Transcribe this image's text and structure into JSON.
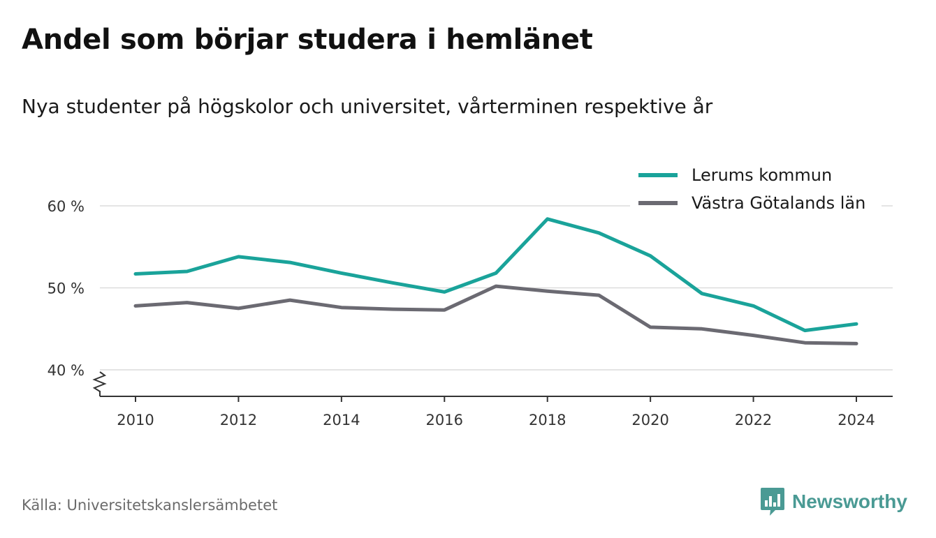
{
  "title": "Andel som börjar studera i hemlänet",
  "subtitle": "Nya studenter på högskolor och universitet, vårterminen respektive år",
  "source": "Källa: Universitetskanslersämbetet",
  "brand": {
    "name": "Newsworthy",
    "icon": "newsworthy-logo-icon",
    "color": "#4a9a94"
  },
  "chart_data": {
    "type": "line",
    "x": [
      2010,
      2011,
      2012,
      2013,
      2014,
      2015,
      2016,
      2017,
      2018,
      2019,
      2020,
      2021,
      2022,
      2023,
      2024
    ],
    "x_ticks": [
      2010,
      2012,
      2014,
      2016,
      2018,
      2020,
      2022,
      2024
    ],
    "x_tick_labels": [
      "2010",
      "2012",
      "2014",
      "2016",
      "2018",
      "2020",
      "2022",
      "2024"
    ],
    "y_ticks": [
      40,
      50,
      60
    ],
    "y_tick_labels": [
      "40 %",
      "50 %",
      "60 %"
    ],
    "ylim": [
      37,
      64
    ],
    "y_axis_break": true,
    "grid": true,
    "legend_position": "top-right",
    "series": [
      {
        "name": "Lerums kommun",
        "color": "#1aa39a",
        "values": [
          51.7,
          52.0,
          53.8,
          53.1,
          51.8,
          50.6,
          49.5,
          51.8,
          58.4,
          56.7,
          53.9,
          49.3,
          47.8,
          44.8,
          45.6
        ]
      },
      {
        "name": "Västra Götalands län",
        "color": "#6b6a72",
        "values": [
          47.8,
          48.2,
          47.5,
          48.5,
          47.6,
          47.4,
          47.3,
          50.2,
          49.6,
          49.1,
          45.2,
          45.0,
          44.2,
          43.3,
          43.2
        ]
      }
    ]
  }
}
